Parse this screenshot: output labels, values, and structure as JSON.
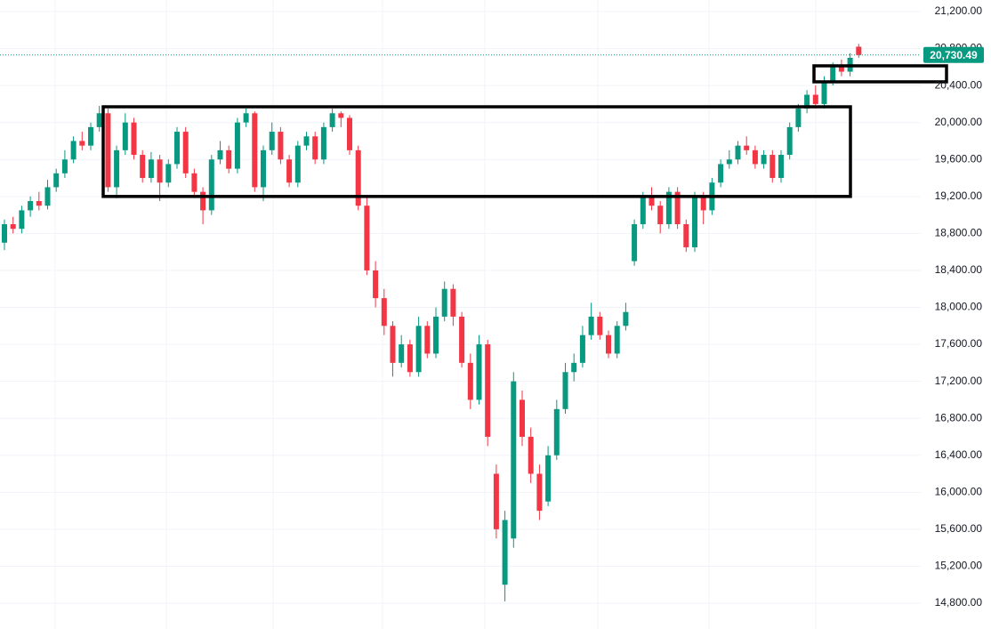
{
  "chart_data": {
    "type": "candlestick",
    "open": [
      18700,
      18900,
      18850,
      19050,
      19150,
      19100,
      19300,
      19450,
      19600,
      19800,
      19750,
      19950,
      20100,
      19300,
      19700,
      20000,
      19650,
      19400,
      19600,
      19350,
      19550,
      19900,
      19450,
      19250,
      19050,
      19600,
      19700,
      19500,
      20000,
      20100,
      19300,
      19700,
      19900,
      19600,
      19350,
      19750,
      19850,
      19600,
      19950,
      20100,
      20050,
      19700,
      19100,
      18400,
      18100,
      17800,
      17400,
      17600,
      17300,
      17800,
      17500,
      17900,
      18200,
      17900,
      17400,
      17000,
      17600,
      16200,
      15000,
      15500,
      17000,
      16600,
      16200,
      15900,
      16400,
      16900,
      17300,
      17400,
      17700,
      17900,
      17700,
      17500,
      17800,
      18500,
      18900,
      19200,
      19100,
      18900,
      19250,
      18900,
      18650,
      19200,
      19050,
      19350,
      19550,
      19600,
      19750,
      19700,
      19550,
      19650,
      19400,
      19650,
      19950,
      20150,
      20300,
      20200,
      20450,
      20600,
      20550,
      20820
    ],
    "high": [
      18950,
      18980,
      19100,
      19200,
      19250,
      19380,
      19500,
      19700,
      19850,
      19900,
      20000,
      20180,
      20150,
      19750,
      20100,
      20050,
      19700,
      19680,
      19650,
      19600,
      19950,
      19950,
      19500,
      19300,
      19650,
      19800,
      19750,
      20050,
      20150,
      20120,
      19750,
      20000,
      19950,
      19650,
      19800,
      19900,
      19900,
      20000,
      20150,
      20120,
      20080,
      19750,
      19200,
      18500,
      18200,
      17850,
      17700,
      17650,
      17900,
      17850,
      18000,
      18280,
      18250,
      17950,
      17500,
      17700,
      17650,
      16300,
      15800,
      17300,
      17100,
      16700,
      16300,
      16500,
      17000,
      17400,
      17500,
      17800,
      18050,
      17950,
      17750,
      17850,
      18050,
      18950,
      19250,
      19300,
      19150,
      19300,
      19300,
      18950,
      19250,
      19250,
      19400,
      19600,
      19700,
      19800,
      19850,
      19750,
      19700,
      19700,
      19700,
      20000,
      20200,
      20350,
      20400,
      20500,
      20650,
      20680,
      20750,
      20850
    ],
    "low": [
      18620,
      18800,
      18800,
      18980,
      19050,
      19060,
      19250,
      19400,
      19560,
      19700,
      19700,
      19900,
      19250,
      19180,
      19650,
      19600,
      19350,
      19350,
      19150,
      19300,
      19500,
      19400,
      19200,
      18900,
      19000,
      19550,
      19450,
      19450,
      19950,
      19250,
      19150,
      19650,
      19550,
      19300,
      19300,
      19700,
      19550,
      19550,
      19900,
      19950,
      19650,
      19050,
      18350,
      18000,
      17700,
      17250,
      17350,
      17250,
      17250,
      17450,
      17450,
      17850,
      17800,
      17350,
      16900,
      16950,
      16500,
      15500,
      14820,
      15400,
      16500,
      16100,
      15700,
      15850,
      16350,
      16850,
      17200,
      17350,
      17650,
      17650,
      17450,
      17450,
      17750,
      18450,
      18850,
      19050,
      18800,
      18850,
      18850,
      18600,
      18600,
      18900,
      19000,
      19300,
      19500,
      19550,
      19650,
      19500,
      19500,
      19350,
      19350,
      19600,
      19900,
      20100,
      20150,
      20150,
      20400,
      20500,
      20500,
      20700
    ],
    "close": [
      18900,
      18850,
      19050,
      19150,
      19100,
      19300,
      19450,
      19600,
      19800,
      19750,
      19950,
      20100,
      19300,
      19700,
      20000,
      19650,
      19400,
      19600,
      19350,
      19550,
      19900,
      19450,
      19250,
      19050,
      19600,
      19700,
      19500,
      20000,
      20100,
      19300,
      19700,
      19900,
      19600,
      19350,
      19750,
      19850,
      19600,
      19950,
      20100,
      20050,
      19700,
      19100,
      18400,
      18100,
      17800,
      17400,
      17600,
      17300,
      17800,
      17500,
      17900,
      18200,
      17900,
      17400,
      17000,
      17600,
      16600,
      15600,
      15700,
      17200,
      16600,
      16200,
      15800,
      16400,
      16900,
      17300,
      17400,
      17700,
      17900,
      17700,
      17500,
      17800,
      17950,
      18900,
      19200,
      19100,
      18900,
      19250,
      18900,
      18650,
      19200,
      19050,
      19350,
      19550,
      19600,
      19750,
      19700,
      19550,
      19650,
      19400,
      19650,
      19950,
      20150,
      20300,
      20200,
      20450,
      20600,
      20550,
      20700,
      20730.49
    ],
    "up_color": "#089981",
    "down_color": "#f23645",
    "ylim": [
      14800,
      21200
    ],
    "yticks": [
      {
        "value": 14800,
        "label": "14,800.00"
      },
      {
        "value": 15200,
        "label": "15,200.00"
      },
      {
        "value": 15600,
        "label": "15,600.00"
      },
      {
        "value": 16000,
        "label": "16,000.00"
      },
      {
        "value": 16400,
        "label": "16,400.00"
      },
      {
        "value": 16800,
        "label": "16,800.00"
      },
      {
        "value": 17200,
        "label": "17,200.00"
      },
      {
        "value": 17600,
        "label": "17,600.00"
      },
      {
        "value": 18000,
        "label": "18,000.00"
      },
      {
        "value": 18400,
        "label": "18,400.00"
      },
      {
        "value": 18800,
        "label": "18,800.00"
      },
      {
        "value": 19200,
        "label": "19,200.00"
      },
      {
        "value": 19600,
        "label": "19,600.00"
      },
      {
        "value": 20000,
        "label": "20,000.00"
      },
      {
        "value": 20400,
        "label": "20,400.00"
      },
      {
        "value": 20800,
        "label": "20,800.00"
      },
      {
        "value": 21200,
        "label": "21,200.00"
      }
    ],
    "last_price": {
      "value": 20730.49,
      "label": "20,730.49"
    },
    "zones": [
      {
        "top": 20170,
        "bottom": 19200
      },
      {
        "top": 20613,
        "bottom": 20440
      }
    ],
    "grid": true
  }
}
